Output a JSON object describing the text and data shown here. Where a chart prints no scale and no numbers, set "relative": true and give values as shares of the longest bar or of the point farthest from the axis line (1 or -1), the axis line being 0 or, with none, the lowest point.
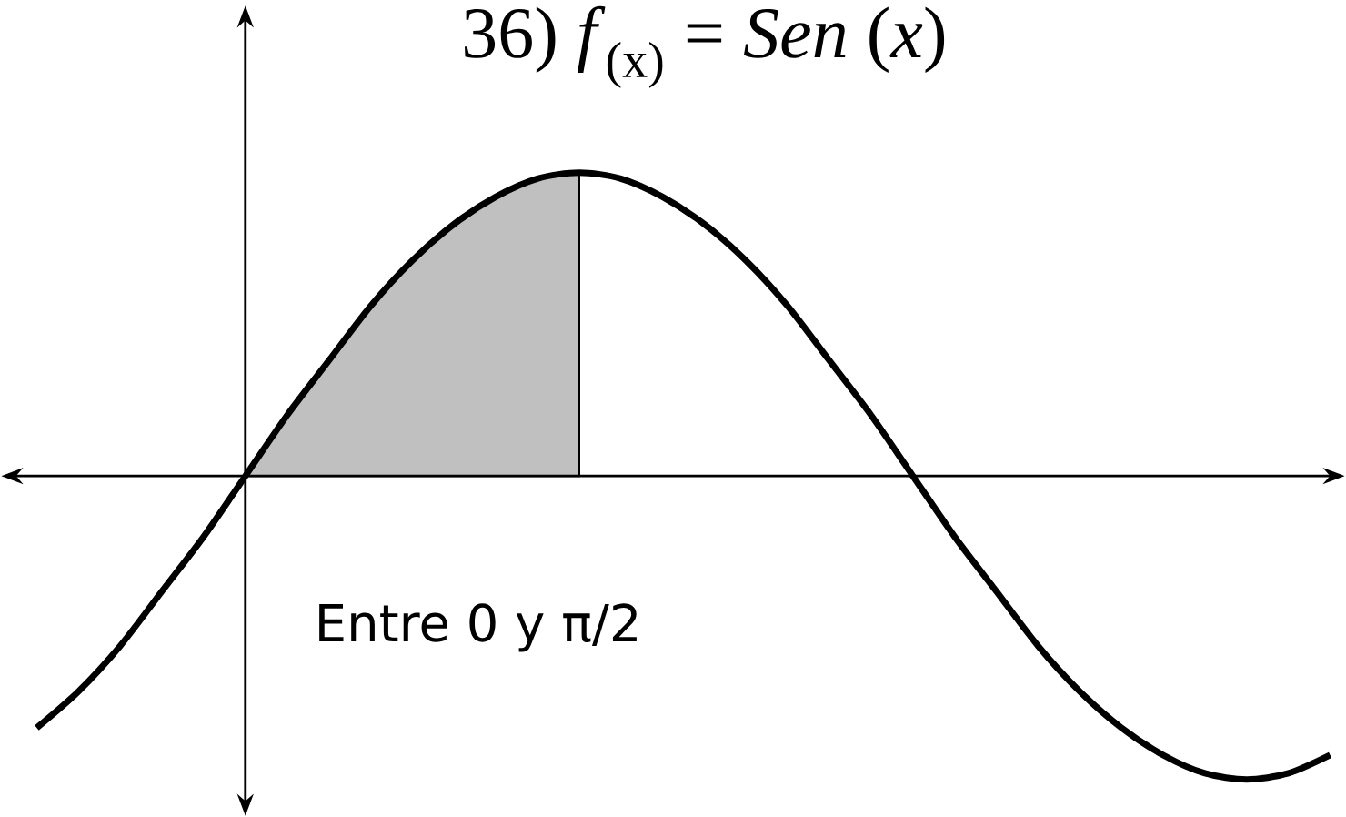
{
  "chart_data": {
    "type": "line",
    "title": "36)  *f*$_{(x)}$ =  *Sen* (*x*)",
    "relative": true,
    "annotations": [
      "Entre 0 y π/2"
    ],
    "categories": [
      null,
      null,
      null,
      null,
      null,
      null,
      null,
      null,
      null,
      null,
      null,
      null,
      null,
      null,
      null,
      null,
      null,
      null,
      null,
      null,
      null,
      null,
      null,
      null,
      null,
      null,
      null,
      null,
      null,
      null,
      null,
      null
    ],
    "series": [
      {
        "type": "area",
        "color": "#c0c0c0",
        "values": [
          null,
          null,
          null,
          null,
          null,
          0,
          0.2,
          0.38,
          0.56,
          0.71,
          0.83,
          0.92,
          0.98,
          1,
          null,
          null,
          null,
          null,
          null,
          null,
          null,
          null,
          null,
          null,
          null,
          null,
          null,
          null,
          null,
          null,
          null,
          null
        ]
      },
      {
        "color": "#000000",
        "values": [
          -0.83,
          -0.71,
          -0.56,
          -0.38,
          -0.2,
          0,
          0.2,
          0.38,
          0.56,
          0.71,
          0.83,
          0.92,
          0.98,
          1,
          0.98,
          0.92,
          0.83,
          0.71,
          0.56,
          0.38,
          0.2,
          0,
          -0.2,
          -0.38,
          -0.56,
          -0.71,
          -0.83,
          -0.92,
          -0.98,
          -1,
          -0.98,
          -0.92
        ]
      }
    ]
  }
}
